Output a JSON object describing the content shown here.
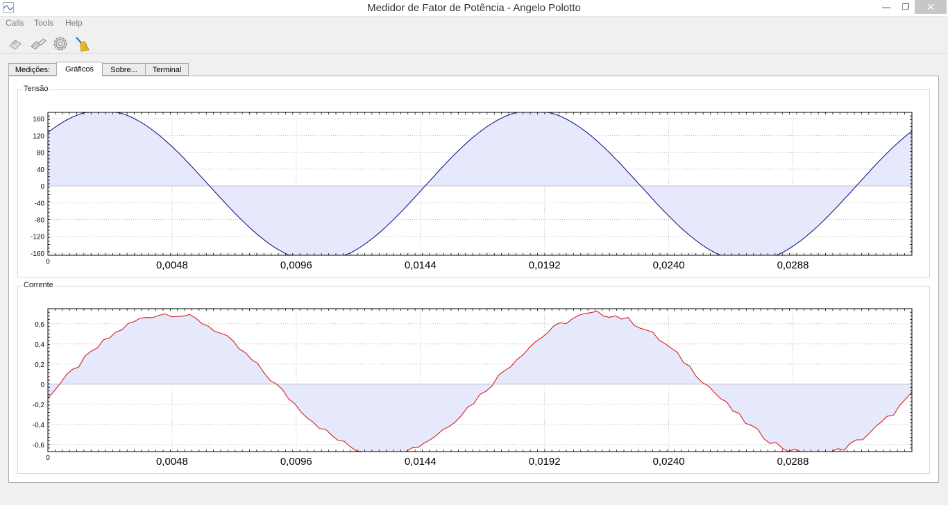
{
  "window": {
    "title": "Medidor de Fator de Potência - Angelo Polotto",
    "minimize_glyph": "—",
    "maximize_glyph": "❐",
    "close_glyph": "✕"
  },
  "menu": {
    "items": [
      "Calls",
      "Tools",
      "Help"
    ]
  },
  "toolbar": {
    "buttons": [
      {
        "icon": "connect-icon"
      },
      {
        "icon": "disconnect-icon"
      },
      {
        "icon": "settings-gear-icon"
      },
      {
        "icon": "clear-broom-icon"
      }
    ]
  },
  "tabs": [
    {
      "label": "Medições:",
      "active": false
    },
    {
      "label": "Gráficos",
      "active": true
    },
    {
      "label": "Sobre...",
      "active": false
    },
    {
      "label": "Terminal",
      "active": false
    }
  ],
  "colors": {
    "voltage_line": "#1a1a8c",
    "current_line": "#d42020",
    "fill": "#e6e8fb",
    "grid": "#bdbdbd"
  },
  "chart_data": [
    {
      "type": "area",
      "group_title": "Tensão",
      "amplitude": 180,
      "frequency_hz": 60,
      "phase_deg": 45,
      "xlim": [
        0,
        0.0334
      ],
      "ylim": [
        -165,
        175
      ],
      "x_ticks": [
        0,
        0.0048,
        0.0096,
        0.0144,
        0.0192,
        0.024,
        0.0288
      ],
      "x_tick_labels": [
        "0",
        "0,0048",
        "0,0096",
        "0,0144",
        "0,0192",
        "0,0240",
        "0,0288"
      ],
      "y_ticks": [
        160,
        120,
        80,
        40,
        0,
        -40,
        -80,
        -120,
        -160
      ],
      "y_tick_labels": [
        "160",
        "120",
        "80",
        "40",
        "0",
        "-40",
        "-80",
        "-120",
        "-160"
      ],
      "grid": true
    },
    {
      "type": "area",
      "group_title": "Corrente",
      "amplitude": 0.7,
      "frequency_hz": 60,
      "phase_deg": -10,
      "noise": 0.03,
      "xlim": [
        0,
        0.0334
      ],
      "ylim": [
        -0.67,
        0.75
      ],
      "x_ticks": [
        0,
        0.0048,
        0.0096,
        0.0144,
        0.0192,
        0.024,
        0.0288
      ],
      "x_tick_labels": [
        "0",
        "0,0048",
        "0,0096",
        "0,0144",
        "0,0192",
        "0,0240",
        "0,0288"
      ],
      "y_ticks": [
        0.6,
        0.4,
        0.2,
        0,
        -0.2,
        -0.4,
        -0.6
      ],
      "y_tick_labels": [
        "0,6",
        "0,4",
        "0,2",
        "0",
        "-0,2",
        "-0,4",
        "-0,6"
      ],
      "grid": true
    }
  ]
}
